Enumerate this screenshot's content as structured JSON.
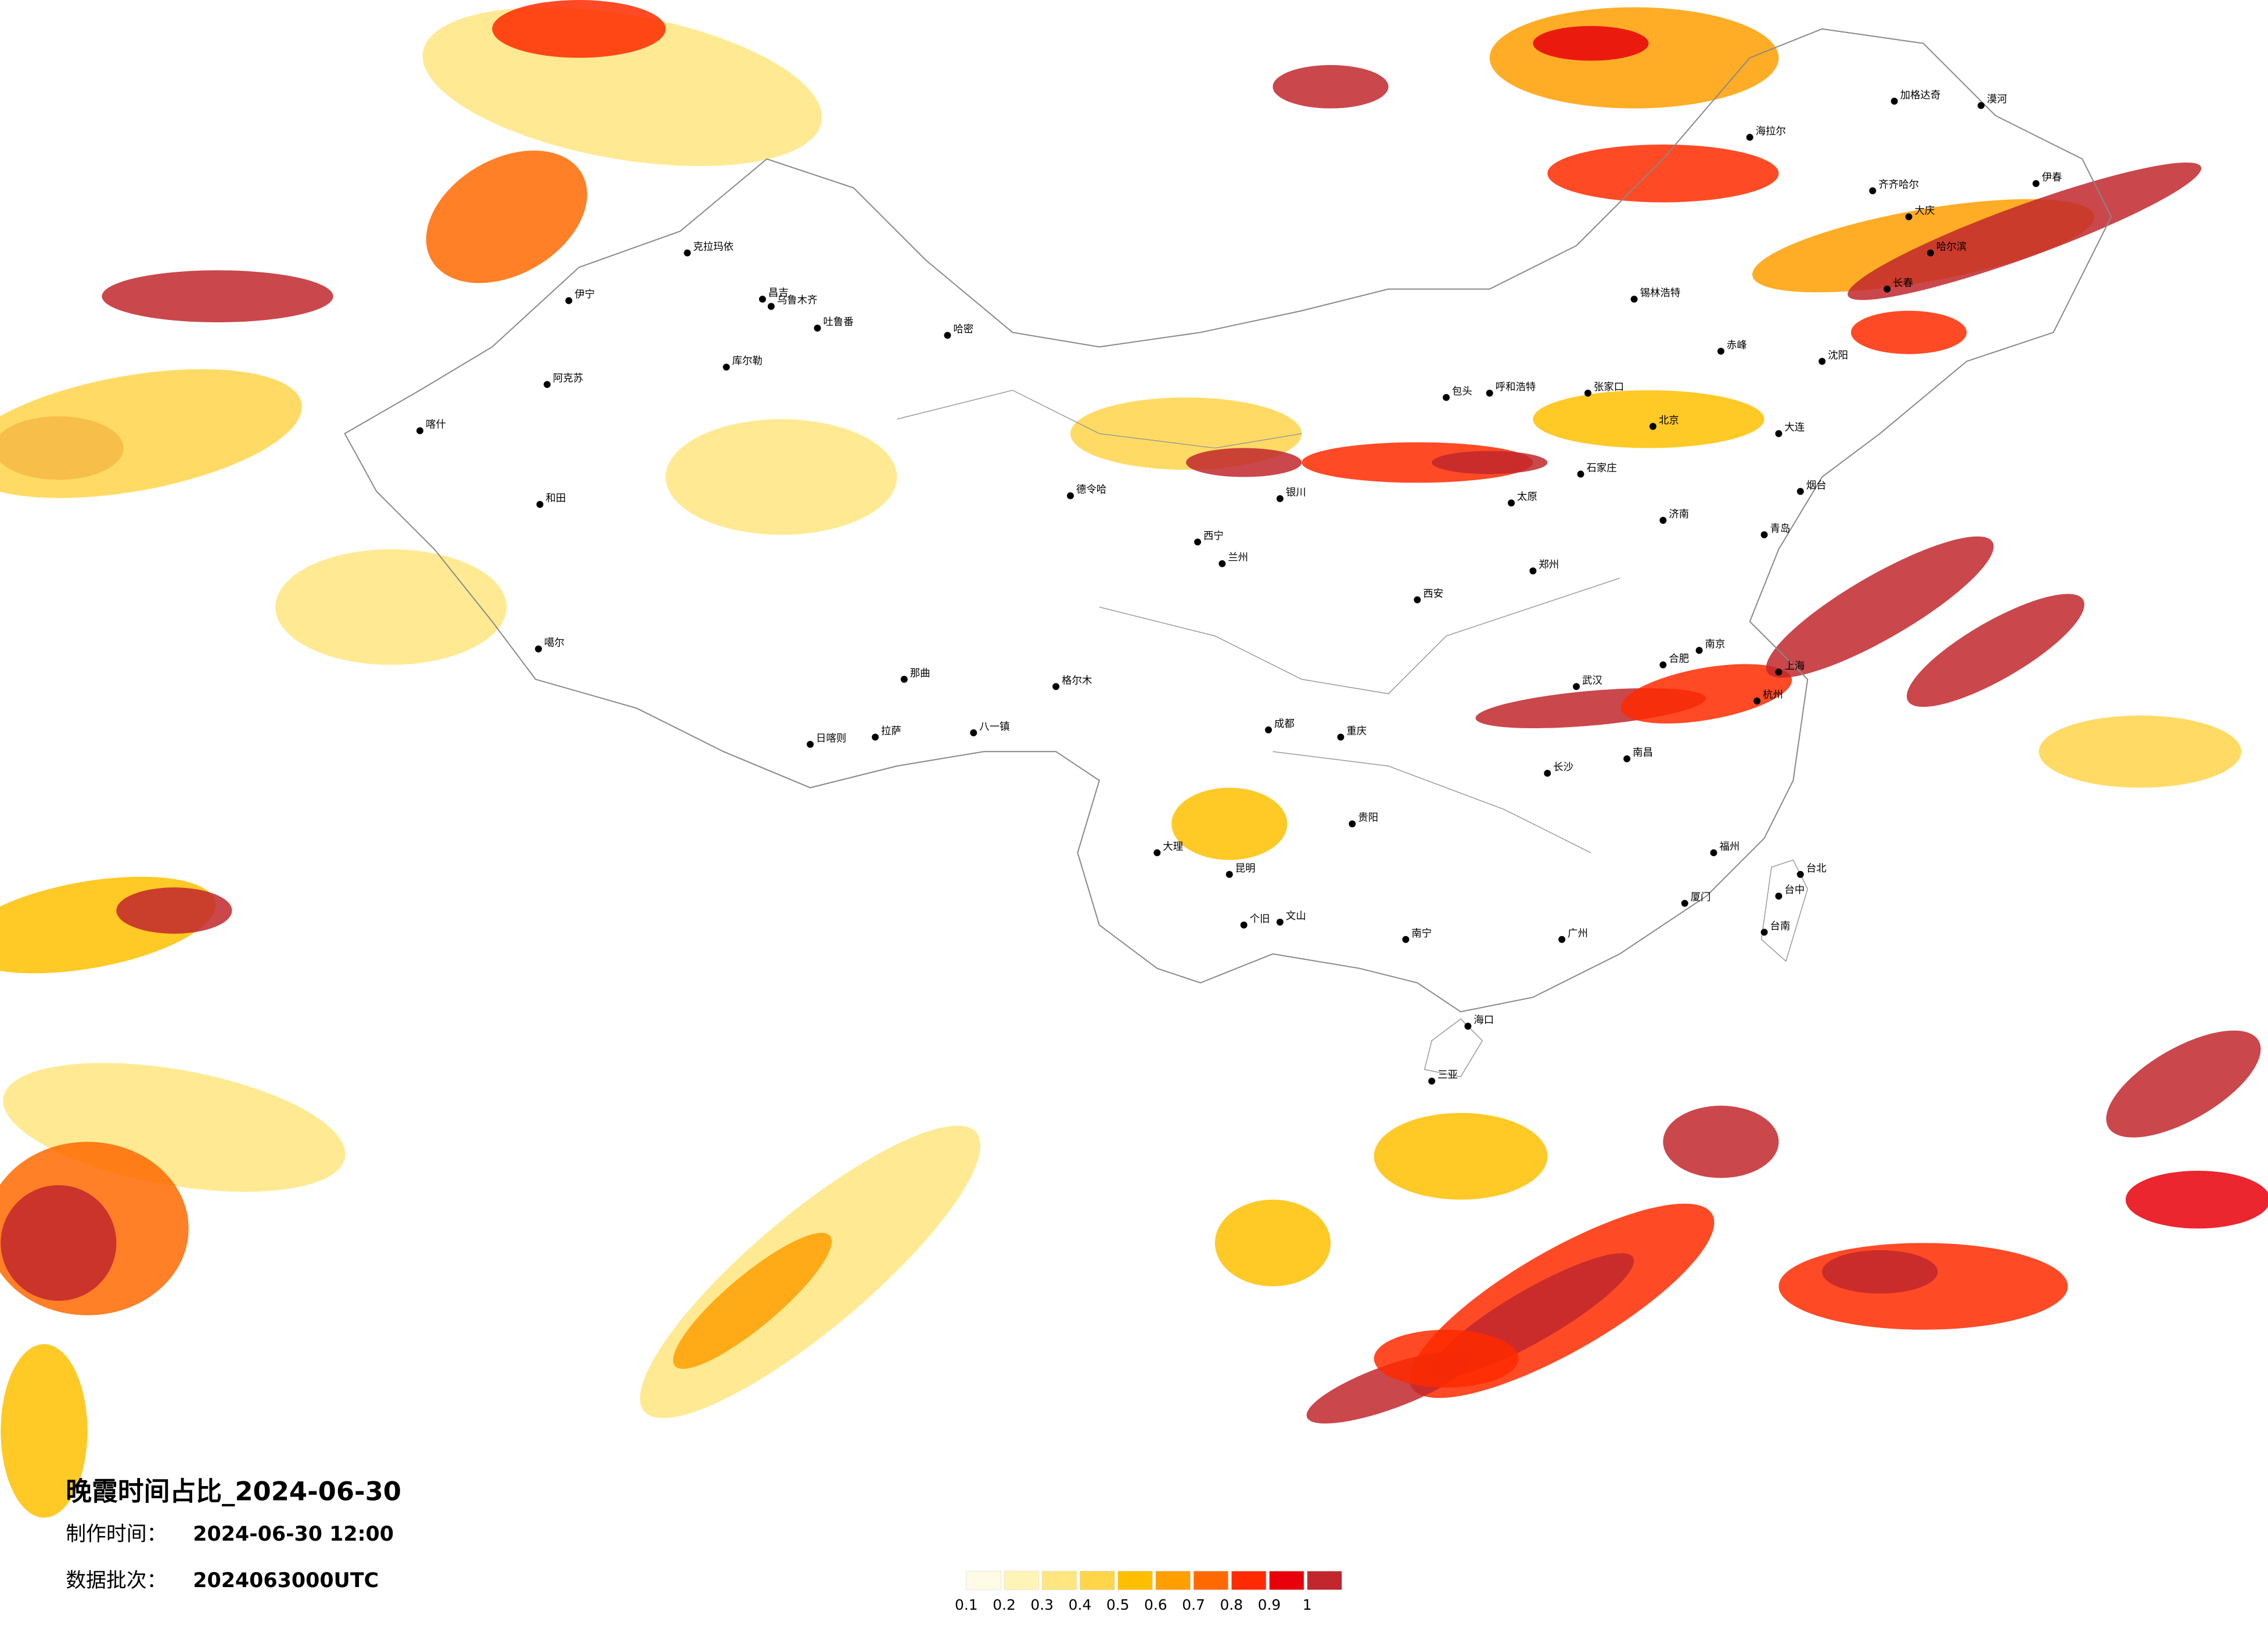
{
  "title": "晚霞时间占比_2024-06-30",
  "made_time_label": "制作时间：",
  "made_time": "2024-06-30 12:00",
  "batch_label": "数据批次：",
  "batch": "2024063000UTC",
  "legend": {
    "colors": [
      "#fffbe6",
      "#fff4b8",
      "#ffe680",
      "#ffd54a",
      "#ffbf00",
      "#ff9f00",
      "#ff6a00",
      "#ff2a00",
      "#e8000b",
      "#c1272d"
    ],
    "ticks": [
      0.1,
      0.2,
      0.3,
      0.4,
      0.5,
      0.6,
      0.7,
      0.8,
      0.9,
      1
    ]
  },
  "cities": [
    "克拉玛依",
    "伊宁",
    "昌吉",
    "乌鲁木齐",
    "吐鲁番",
    "哈密",
    "库尔勒",
    "阿克苏",
    "喀什",
    "和田",
    "噶尔",
    "那曲",
    "日喀则",
    "拉萨",
    "八一镇",
    "格尔木",
    "德令哈",
    "西宁",
    "兰州",
    "银川",
    "呼和浩特",
    "包头",
    "张家口",
    "北京",
    "石家庄",
    "太原",
    "济南",
    "郑州",
    "西安",
    "武汉",
    "长沙",
    "南昌",
    "南京",
    "上海",
    "杭州",
    "福州",
    "台北",
    "台中",
    "台南",
    "广州",
    "南宁",
    "海口",
    "三亚",
    "昆明",
    "大理",
    "个旧",
    "文山",
    "贵阳",
    "成都",
    "重庆",
    "哈尔滨",
    "长春",
    "沈阳",
    "大连",
    "齐齐哈尔",
    "加格达奇",
    "海拉尔",
    "漠河",
    "伊春",
    "大庆",
    "锡林浩特",
    "赤峰",
    "烟台",
    "青岛",
    "合肥",
    "厦门"
  ]
}
